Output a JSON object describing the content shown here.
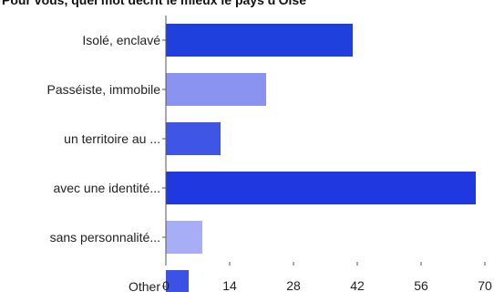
{
  "chart_data": {
    "type": "bar",
    "orientation": "horizontal",
    "title": "Pour vous, quel mot décrit le mieux le pays d'Oise",
    "categories": [
      "Isolé, enclavé",
      "Passéiste, immobile",
      "un territoire au ...",
      "avec une identité...",
      "sans personnalité...",
      "Other"
    ],
    "values": [
      41,
      22,
      12,
      68,
      8,
      5
    ],
    "colors": [
      "#2040dd",
      "#8b93f0",
      "#3f55e6",
      "#2038e0",
      "#a8aef5",
      "#3b52e4"
    ],
    "xticks": [
      0,
      14,
      28,
      42,
      56,
      70
    ],
    "xlim": [
      0,
      70
    ],
    "xlabel": "",
    "ylabel": "",
    "grid": false
  }
}
